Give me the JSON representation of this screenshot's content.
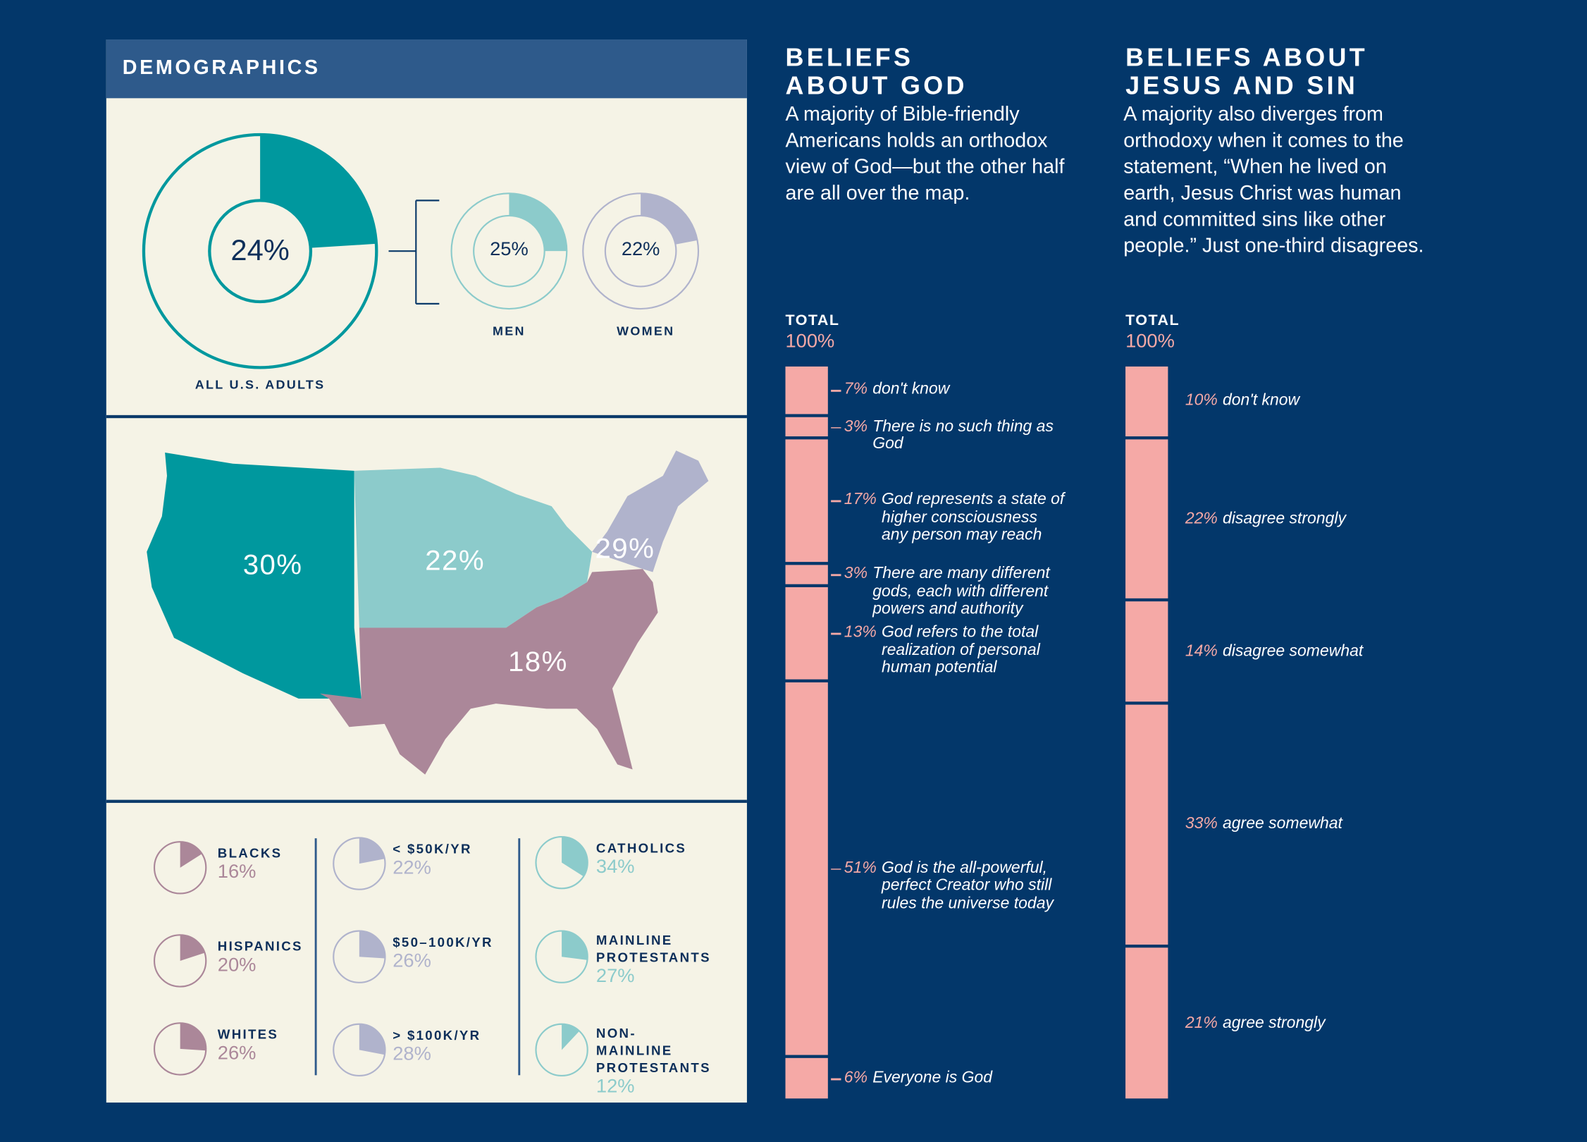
{
  "demographics": {
    "title": "DEMOGRAPHICS",
    "all": {
      "label": "ALL U.S. ADULTS",
      "value": "24%",
      "fraction": 0.24
    },
    "men": {
      "label": "MEN",
      "value": "25%",
      "fraction": 0.25
    },
    "women": {
      "label": "WOMEN",
      "value": "22%",
      "fraction": 0.22
    },
    "regions": {
      "west": "30%",
      "midwest": "22%",
      "northeast": "29%",
      "south": "18%"
    },
    "groups": [
      {
        "label": "BLACKS",
        "value": "16%",
        "fraction": 0.16,
        "color": "#ab8799"
      },
      {
        "label": "HISPANICS",
        "value": "20%",
        "fraction": 0.2,
        "color": "#ab8799"
      },
      {
        "label": "WHITES",
        "value": "26%",
        "fraction": 0.26,
        "color": "#ab8799"
      },
      {
        "label": "< $50K/YR",
        "value": "22%",
        "fraction": 0.22,
        "color": "#b0b3cc"
      },
      {
        "label": "$50–100K/YR",
        "value": "26%",
        "fraction": 0.26,
        "color": "#b0b3cc"
      },
      {
        "label": "> $100K/YR",
        "value": "28%",
        "fraction": 0.28,
        "color": "#b0b3cc"
      },
      {
        "label": "CATHOLICS",
        "value": "34%",
        "fraction": 0.34,
        "color": "#8ccbcb"
      },
      {
        "label": "MAINLINE PROTESTANTS",
        "value": "27%",
        "fraction": 0.27,
        "color": "#8ccbcb"
      },
      {
        "label": "NON-MAINLINE PROTESTANTS",
        "value": "12%",
        "fraction": 0.12,
        "color": "#8ccbcb"
      }
    ]
  },
  "colors": {
    "background": "#03376a",
    "panel": "#f5f3e6",
    "teal": "#00989e",
    "light_teal": "#8ccbcb",
    "lavender": "#b0b3cc",
    "mauve": "#ab8799",
    "pink": "#f5a9a6"
  },
  "god": {
    "title_line1": "BELIEFS",
    "title_line2": "ABOUT GOD",
    "intro": "A majority of Bible-friendly Americans holds an orthodox view of God—but the other half are all over the map.",
    "total_label": "TOTAL",
    "total_value": "100%"
  },
  "jesus": {
    "title_line1": "BELIEFS ABOUT",
    "title_line2": "JESUS AND SIN",
    "intro": "A majority also diverges from orthodoxy when it comes to the statement, “When he lived on earth, Jesus Christ was human and committed sins like other people.” Just one-third disagrees.",
    "total_label": "TOTAL",
    "total_value": "100%"
  },
  "chart_data": [
    {
      "type": "bar",
      "stacked": true,
      "title": "BELIEFS ABOUT GOD",
      "categories": [
        "don't know",
        "There is no such thing as God",
        "God represents a state of higher consciousness any person may reach",
        "There are many different gods, each with different powers and authority",
        "God refers to the total realization of personal human potential",
        "God is the all-powerful, perfect Creator who still rules the universe today",
        "Everyone is God"
      ],
      "values": [
        7,
        3,
        17,
        3,
        13,
        51,
        6
      ],
      "labels": [
        "7%",
        "3%",
        "17%",
        "3%",
        "13%",
        "51%",
        "6%"
      ]
    },
    {
      "type": "bar",
      "stacked": true,
      "title": "BELIEFS ABOUT JESUS AND SIN",
      "categories": [
        "don't know",
        "disagree strongly",
        "disagree somewhat",
        "agree somewhat",
        "agree strongly"
      ],
      "values": [
        10,
        22,
        14,
        33,
        21
      ],
      "labels": [
        "10%",
        "22%",
        "14%",
        "33%",
        "21%"
      ]
    }
  ]
}
